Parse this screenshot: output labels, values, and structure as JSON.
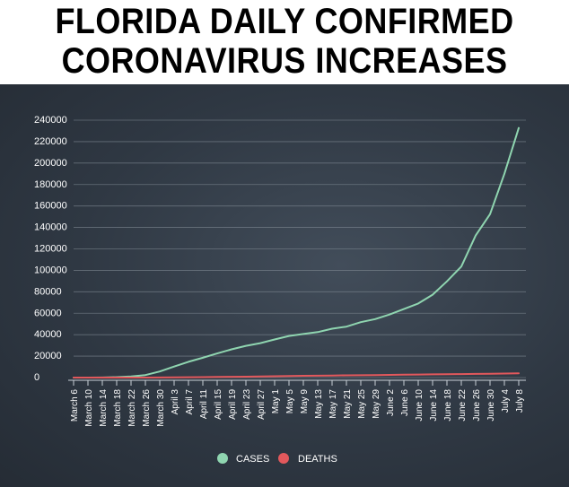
{
  "title": {
    "line1": "FLORIDA DAILY CONFIRMED",
    "line2": "CORONAVIRUS INCREASES"
  },
  "colors": {
    "cases": "#8fd5b0",
    "deaths": "#e2585c",
    "background": "#2f3843",
    "grid": "#7d8792"
  },
  "chart_data": {
    "type": "line",
    "title": "FLORIDA DAILY CONFIRMED CORONAVIRUS INCREASES",
    "xlabel": "",
    "ylabel": "",
    "ylim": [
      0,
      240000
    ],
    "yticks": [
      0,
      20000,
      40000,
      60000,
      80000,
      100000,
      120000,
      140000,
      160000,
      180000,
      200000,
      220000,
      240000
    ],
    "ytick_labels": [
      "0",
      "20000",
      "40000",
      "60000",
      "80000",
      "100000",
      "120000",
      "140000",
      "160000",
      "180000",
      "200000",
      "220000",
      "240000"
    ],
    "x": [
      "March 6",
      "March 10",
      "March 14",
      "March 18",
      "March 22",
      "March 26",
      "March 30",
      "April 3",
      "April 7",
      "April 11",
      "April 15",
      "April 19",
      "April 23",
      "April 27",
      "May 1",
      "May 5",
      "May 9",
      "May 13",
      "May 17",
      "May 21",
      "May 25",
      "May 29",
      "June 2",
      "June 6",
      "June 10",
      "June 14",
      "June 18",
      "June 22",
      "June 26",
      "June 30",
      "July 4",
      "July 8"
    ],
    "grid": true,
    "legend_position": "bottom-center",
    "series": [
      {
        "name": "CASES",
        "values": [
          2,
          15,
          76,
          390,
          1000,
          2350,
          5700,
          10300,
          14700,
          18500,
          22500,
          26300,
          29600,
          32100,
          35500,
          38800,
          40600,
          42400,
          45600,
          47500,
          51700,
          54500,
          58800,
          63900,
          69100,
          77300,
          89700,
          103500,
          132500,
          152400,
          190000,
          232700
        ]
      },
      {
        "name": "DEATHS",
        "values": [
          0,
          2,
          3,
          7,
          13,
          28,
          54,
          193,
          322,
          436,
          574,
          748,
          867,
          1068,
          1268,
          1451,
          1634,
          1778,
          1917,
          2073,
          2190,
          2338,
          2484,
          2660,
          2840,
          3017,
          3164,
          3301,
          3419,
          3617,
          3797,
          4009
        ]
      }
    ]
  },
  "legend": {
    "cases_label": "CASES",
    "deaths_label": "DEATHS"
  }
}
